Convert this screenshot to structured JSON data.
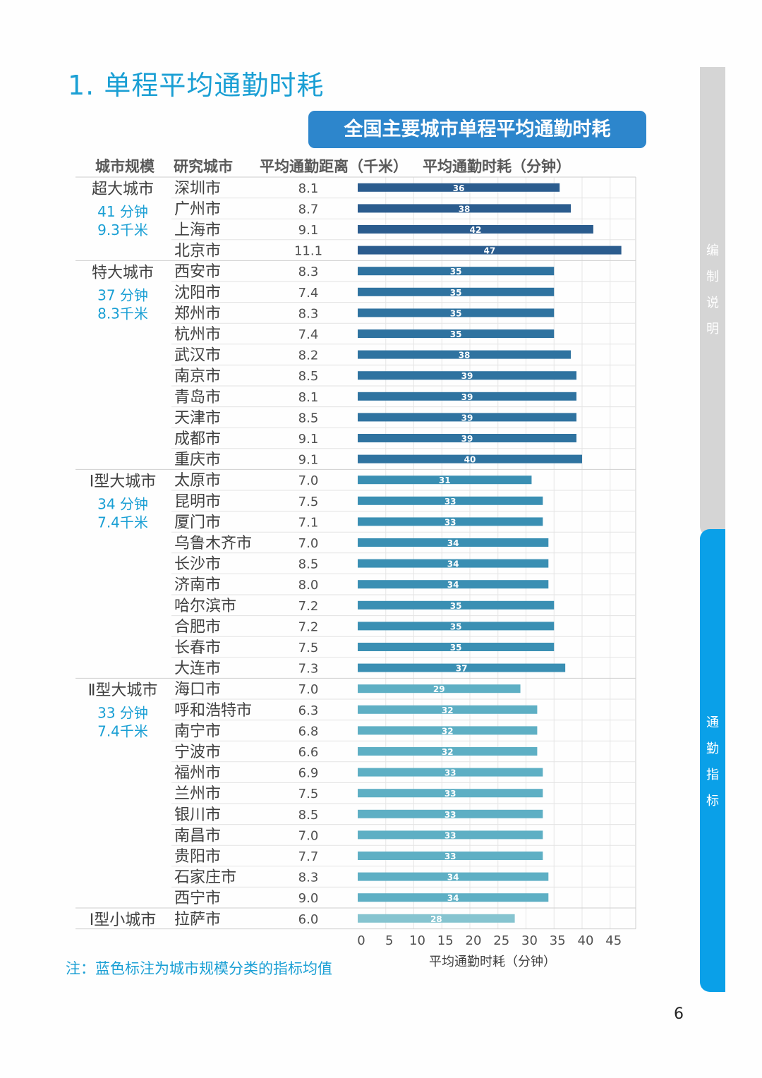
{
  "page": {
    "title": "1. 单程平均通勤时耗",
    "banner": "全国主要城市单程平均通勤时耗",
    "footnote": "注：蓝色标注为城市规模分类的指标均值",
    "page_number": "6",
    "side_tabs": {
      "top": [
        "编",
        "制",
        "说",
        "明"
      ],
      "bottom": [
        "通",
        "勤",
        "指",
        "标"
      ]
    },
    "colors": {
      "accent": "#1a9fd4",
      "banner": "#2d86cc",
      "side_active": "#0aa0e8",
      "side_inactive": "#d5d5d5"
    }
  },
  "chart_data": {
    "type": "bar",
    "orientation": "horizontal",
    "column_headers": {
      "scale": "城市规模",
      "city": "研究城市",
      "distance": "平均通勤距离（千米）",
      "time": "平均通勤时耗（分钟）"
    },
    "xlabel": "平均通勤时耗（分钟）",
    "xlim": [
      0,
      50
    ],
    "xticks": [
      "0",
      "5",
      "10",
      "15",
      "20",
      "25",
      "30",
      "35",
      "40",
      "45"
    ],
    "grid": true,
    "groups": [
      {
        "name": "超大城市",
        "avg_time": "41 分钟",
        "avg_distance": "9.3千米",
        "color": "#2b5c8e",
        "rows": [
          {
            "city": "深圳市",
            "distance": "8.1",
            "time": 36
          },
          {
            "city": "广州市",
            "distance": "8.7",
            "time": 38
          },
          {
            "city": "上海市",
            "distance": "9.1",
            "time": 42
          },
          {
            "city": "北京市",
            "distance": "11.1",
            "time": 47
          }
        ]
      },
      {
        "name": "特大城市",
        "avg_time": "37 分钟",
        "avg_distance": "8.3千米",
        "color": "#2f73a0",
        "rows": [
          {
            "city": "西安市",
            "distance": "8.3",
            "time": 35
          },
          {
            "city": "沈阳市",
            "distance": "7.4",
            "time": 35
          },
          {
            "city": "郑州市",
            "distance": "8.3",
            "time": 35
          },
          {
            "city": "杭州市",
            "distance": "7.4",
            "time": 35
          },
          {
            "city": "武汉市",
            "distance": "8.2",
            "time": 38
          },
          {
            "city": "南京市",
            "distance": "8.5",
            "time": 39
          },
          {
            "city": "青岛市",
            "distance": "8.1",
            "time": 39
          },
          {
            "city": "天津市",
            "distance": "8.5",
            "time": 39
          },
          {
            "city": "成都市",
            "distance": "9.1",
            "time": 39
          },
          {
            "city": "重庆市",
            "distance": "9.1",
            "time": 40
          }
        ]
      },
      {
        "name": "Ⅰ型大城市",
        "avg_time": "34 分钟",
        "avg_distance": "7.4千米",
        "color": "#3a8fb3",
        "rows": [
          {
            "city": "太原市",
            "distance": "7.0",
            "time": 31
          },
          {
            "city": "昆明市",
            "distance": "7.5",
            "time": 33
          },
          {
            "city": "厦门市",
            "distance": "7.1",
            "time": 33
          },
          {
            "city": "乌鲁木齐市",
            "distance": "7.0",
            "time": 34
          },
          {
            "city": "长沙市",
            "distance": "8.5",
            "time": 34
          },
          {
            "city": "济南市",
            "distance": "8.0",
            "time": 34
          },
          {
            "city": "哈尔滨市",
            "distance": "7.2",
            "time": 35
          },
          {
            "city": "合肥市",
            "distance": "7.2",
            "time": 35
          },
          {
            "city": "长春市",
            "distance": "7.5",
            "time": 35
          },
          {
            "city": "大连市",
            "distance": "7.3",
            "time": 37
          }
        ]
      },
      {
        "name": "Ⅱ型大城市",
        "avg_time": "33 分钟",
        "avg_distance": "7.4千米",
        "color": "#5eafc4",
        "rows": [
          {
            "city": "海口市",
            "distance": "7.0",
            "time": 29
          },
          {
            "city": "呼和浩特市",
            "distance": "6.3",
            "time": 32
          },
          {
            "city": "南宁市",
            "distance": "6.8",
            "time": 32
          },
          {
            "city": "宁波市",
            "distance": "6.6",
            "time": 32
          },
          {
            "city": "福州市",
            "distance": "6.9",
            "time": 33
          },
          {
            "city": "兰州市",
            "distance": "7.5",
            "time": 33
          },
          {
            "city": "银川市",
            "distance": "8.5",
            "time": 33
          },
          {
            "city": "南昌市",
            "distance": "7.0",
            "time": 33
          },
          {
            "city": "贵阳市",
            "distance": "7.7",
            "time": 33
          },
          {
            "city": "石家庄市",
            "distance": "8.3",
            "time": 34
          },
          {
            "city": "西宁市",
            "distance": "9.0",
            "time": 34
          }
        ]
      },
      {
        "name": "Ⅰ型小城市",
        "avg_time": "",
        "avg_distance": "",
        "color": "#86c4d0",
        "rows": [
          {
            "city": "拉萨市",
            "distance": "6.0",
            "time": 28
          }
        ]
      }
    ]
  }
}
